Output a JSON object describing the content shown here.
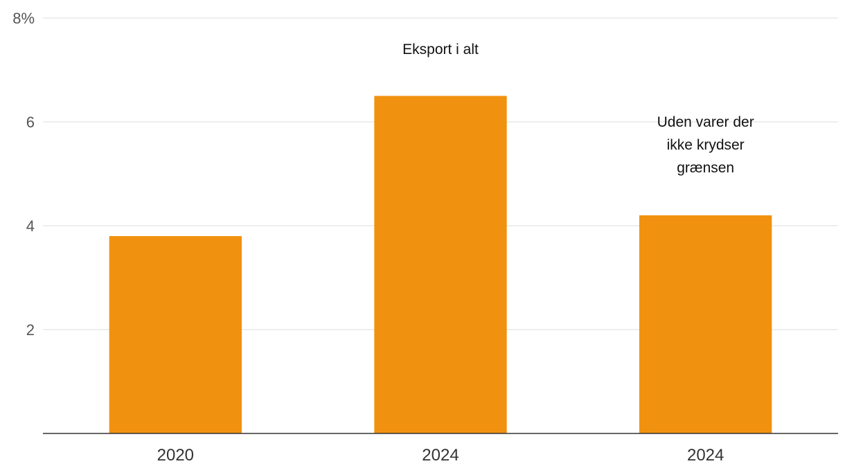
{
  "chart_data": {
    "type": "bar",
    "categories": [
      "2020",
      "2024",
      "2024"
    ],
    "values": [
      3.8,
      6.5,
      4.2
    ],
    "ylim": [
      0,
      8
    ],
    "yticks": [
      2,
      4,
      6,
      8
    ],
    "ytick_labels": [
      "2",
      "4",
      "6",
      "8%"
    ],
    "grid": true,
    "bar_color": "#f0920f",
    "annotations": [
      {
        "lines": [
          "Eksport i alt"
        ],
        "category_index": 1
      },
      {
        "lines": [
          "Uden varer der",
          "ikke krydser",
          "grænsen"
        ],
        "category_index": 2
      }
    ]
  }
}
